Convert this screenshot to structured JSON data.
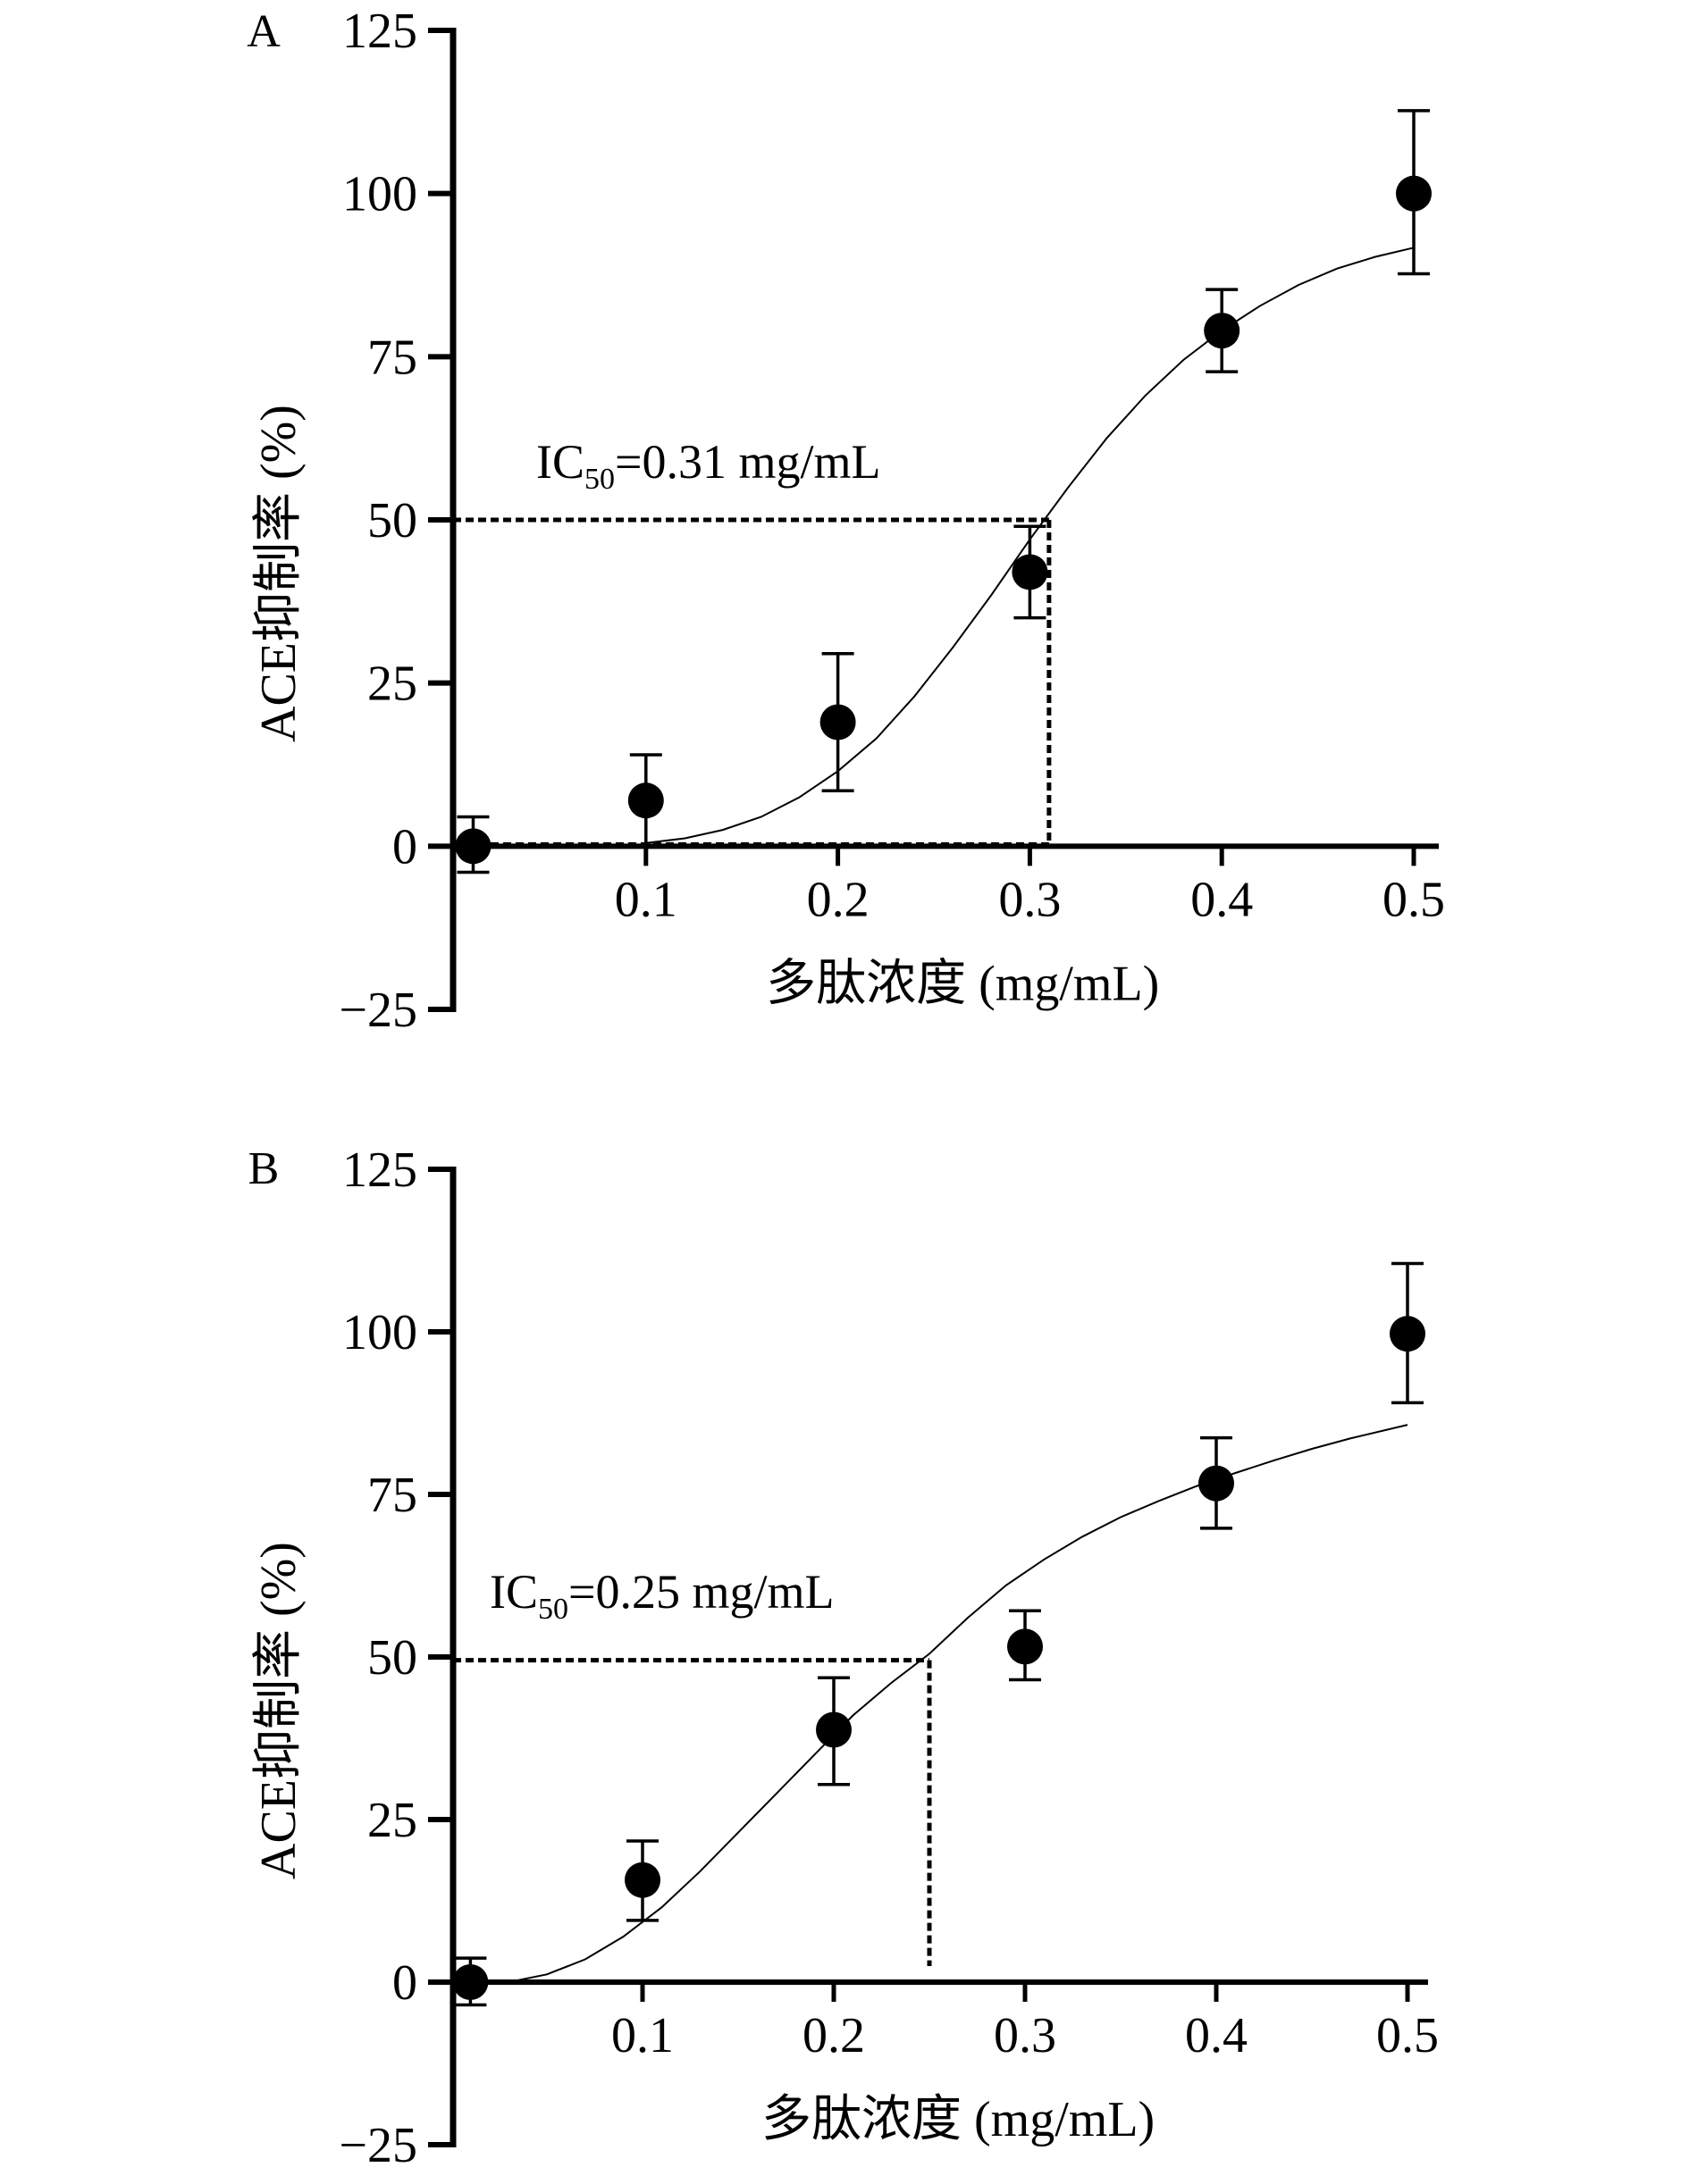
{
  "chart_data": [
    {
      "type": "scatter",
      "panel_label": "A",
      "title": "",
      "xlabel": "多肽浓度 (mg/mL)",
      "ylabel": "ACE抑制率 (%)",
      "xlim": [
        0,
        0.51
      ],
      "ylim": [
        -25,
        125
      ],
      "xticks": [
        0.1,
        0.2,
        0.3,
        0.4,
        0.5
      ],
      "xtick_labels": [
        "0.1",
        "0.2",
        "0.3",
        "0.4",
        "0.5"
      ],
      "yticks": [
        -25,
        0,
        25,
        50,
        75,
        100,
        125
      ],
      "ytick_labels": [
        "−25",
        "0",
        "25",
        "50",
        "75",
        "100",
        "125"
      ],
      "grid": false,
      "legend": "none",
      "annotation": {
        "prefix": "IC",
        "sub": "50",
        "suffix": "=0.31 mg/mL"
      },
      "ic50": {
        "x": 0.31,
        "y": 50
      },
      "points": [
        {
          "x": 0.01,
          "y": 0,
          "err_low": 4,
          "err_high": 4.5
        },
        {
          "x": 0.1,
          "y": 7,
          "err_low": 7,
          "err_high": 7
        },
        {
          "x": 0.2,
          "y": 19,
          "err_low": 10.5,
          "err_high": 10.5
        },
        {
          "x": 0.3,
          "y": 42,
          "err_low": 7,
          "err_high": 7
        },
        {
          "x": 0.4,
          "y": 79,
          "err_low": 6.3,
          "err_high": 6.3
        },
        {
          "x": 0.5,
          "y": 100,
          "err_low": 12.3,
          "err_high": 12.7
        }
      ],
      "fit_curve": {
        "x": [
          0.1,
          0.12,
          0.14,
          0.16,
          0.18,
          0.2,
          0.22,
          0.24,
          0.26,
          0.28,
          0.3,
          0.32,
          0.34,
          0.36,
          0.38,
          0.4,
          0.42,
          0.44,
          0.46,
          0.48,
          0.5
        ],
        "y": [
          0.5,
          1.2,
          2.5,
          4.5,
          7.5,
          11.5,
          16.5,
          23,
          30.5,
          38.5,
          47,
          55,
          62.5,
          69,
          74.5,
          79,
          82.8,
          86,
          88.5,
          90.3,
          91.7
        ]
      }
    },
    {
      "type": "scatter",
      "panel_label": "B",
      "title": "",
      "xlabel": "多肽浓度 (mg/mL)",
      "ylabel": "ACE抑制率 (%)",
      "xlim": [
        0,
        0.51
      ],
      "ylim": [
        -25,
        125
      ],
      "xticks": [
        0.1,
        0.2,
        0.3,
        0.4,
        0.5
      ],
      "xtick_labels": [
        "0.1",
        "0.2",
        "0.3",
        "0.4",
        "0.5"
      ],
      "yticks": [
        -25,
        0,
        25,
        50,
        75,
        100,
        125
      ],
      "ytick_labels": [
        "−25",
        "0",
        "25",
        "50",
        "75",
        "100",
        "125"
      ],
      "grid": false,
      "legend": "none",
      "annotation": {
        "prefix": "IC",
        "sub": "50",
        "suffix": "=0.25 mg/mL"
      },
      "ic50": {
        "x": 0.25,
        "y": 49.5
      },
      "points": [
        {
          "x": 0.01,
          "y": 0,
          "err_low": 3.5,
          "err_high": 3.7
        },
        {
          "x": 0.1,
          "y": 15.7,
          "err_low": 6.2,
          "err_high": 6
        },
        {
          "x": 0.2,
          "y": 38.8,
          "err_low": 8.4,
          "err_high": 8
        },
        {
          "x": 0.3,
          "y": 51.6,
          "err_low": 5.1,
          "err_high": 5.5
        },
        {
          "x": 0.4,
          "y": 76.7,
          "err_low": 6.9,
          "err_high": 7
        },
        {
          "x": 0.5,
          "y": 99.7,
          "err_low": 10.6,
          "err_high": 10.8
        }
      ],
      "fit_curve": {
        "x": [
          0.03,
          0.05,
          0.07,
          0.09,
          0.11,
          0.13,
          0.15,
          0.17,
          0.19,
          0.21,
          0.23,
          0.25,
          0.27,
          0.29,
          0.31,
          0.33,
          0.35,
          0.37,
          0.39,
          0.41,
          0.43,
          0.45,
          0.47,
          0.5
        ],
        "y": [
          0,
          1.2,
          3.5,
          7,
          11.5,
          17,
          23,
          29,
          35,
          41,
          46,
          50.5,
          56,
          61,
          65,
          68.5,
          71.5,
          74,
          76.3,
          78.3,
          80.2,
          82,
          83.6,
          85.7
        ]
      }
    }
  ]
}
